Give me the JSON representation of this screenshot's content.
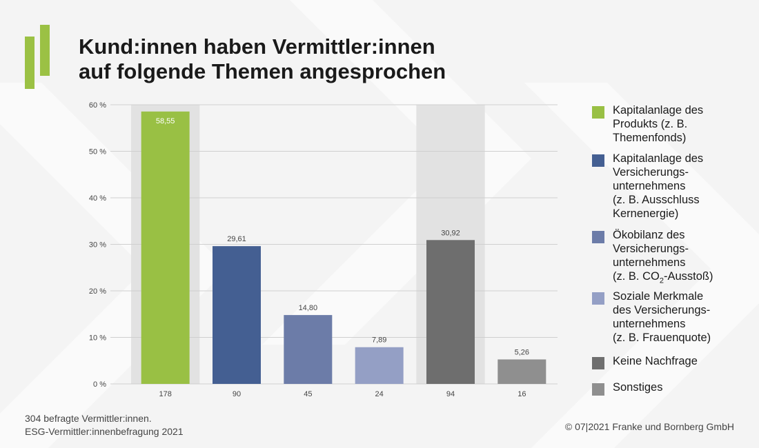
{
  "header": {
    "title_line1": "Kund:innen haben Vermittler:innen",
    "title_line2": "auf folgende Themen angesprochen"
  },
  "colors": {
    "accent": "#9bc144",
    "highlight_band": "#e2e2e2",
    "gridline": "#cfcfcf"
  },
  "chart_data": {
    "type": "bar",
    "ylim": [
      0,
      60
    ],
    "y_ticks": [
      0,
      10,
      20,
      30,
      40,
      50,
      60
    ],
    "y_tick_labels": [
      "0 %",
      "10 %",
      "20 %",
      "30 %",
      "40 %",
      "50 %",
      "60 %"
    ],
    "categories": [
      "178",
      "90",
      "45",
      "24",
      "94",
      "16"
    ],
    "values": [
      58.55,
      29.61,
      14.8,
      7.89,
      30.92,
      5.26
    ],
    "value_labels": [
      "58,55",
      "29,61",
      "14,80",
      "7,89",
      "30,92",
      "5,26"
    ],
    "bar_colors": [
      "#99c044",
      "#445f92",
      "#6c7ca8",
      "#949fc5",
      "#6e6e6e",
      "#8f8f8f"
    ],
    "highlighted_categories": [
      "178",
      "94"
    ],
    "grid": true,
    "legend_position": "right"
  },
  "legend": {
    "items": [
      {
        "label": "Kapitalanlage des\nProdukts (z. B.\nThemenfonds)",
        "color": "#99c044"
      },
      {
        "label": "Kapitalanlage des\nVersicherungs-\nunternehmens\n(z. B. Ausschluss\nKernenergie)",
        "color": "#445f92"
      },
      {
        "label_pre": "Ökobilanz des\nVersicherungs-\nunternehmens\n(z. B. CO",
        "label_sub": "2",
        "label_post": "-Ausstoß)",
        "color": "#6c7ca8"
      },
      {
        "label": "Soziale Merkmale\ndes Versicherungs-\nunternehmens\n(z. B. Frauenquote)",
        "color": "#949fc5"
      },
      {
        "label": "Keine Nachfrage",
        "color": "#6e6e6e"
      },
      {
        "label": "Sonstiges",
        "color": "#8f8f8f"
      }
    ]
  },
  "footer": {
    "note_line1": "304 befragte Vermittler:innen.",
    "note_line2": "ESG-Vermittler:innenbefragung 2021",
    "copyright": "© 07|2021 Franke und Bornberg GmbH"
  }
}
